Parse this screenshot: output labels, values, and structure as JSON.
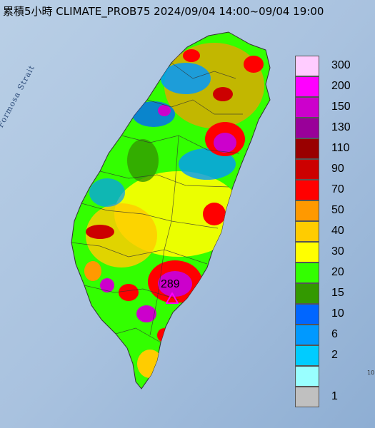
{
  "title": "累積5小時 CLIMATE_PROB75 2024/09/04 14:00~09/04 19:00",
  "map": {
    "strait_label": "Formosa Strait",
    "max_value": "289",
    "max_marker": "triangle-marker-icon",
    "edge_tick": "10"
  },
  "legend": {
    "items": [
      {
        "label": "300",
        "color": "#ffccff"
      },
      {
        "label": "200",
        "color": "#ff00ff"
      },
      {
        "label": "150",
        "color": "#cc00cc"
      },
      {
        "label": "130",
        "color": "#990099"
      },
      {
        "label": "110",
        "color": "#990000"
      },
      {
        "label": "90",
        "color": "#cc0000"
      },
      {
        "label": "70",
        "color": "#ff0000"
      },
      {
        "label": "50",
        "color": "#ff9900"
      },
      {
        "label": "40",
        "color": "#ffcc00"
      },
      {
        "label": "30",
        "color": "#ffff00"
      },
      {
        "label": "20",
        "color": "#33ff00"
      },
      {
        "label": "15",
        "color": "#339900"
      },
      {
        "label": "10",
        "color": "#0066ff"
      },
      {
        "label": "6",
        "color": "#0099ff"
      },
      {
        "label": "2",
        "color": "#00ccff"
      },
      {
        "label": "",
        "color": "#99ffff"
      },
      {
        "label": "1",
        "color": "#c0c0c0"
      }
    ]
  }
}
